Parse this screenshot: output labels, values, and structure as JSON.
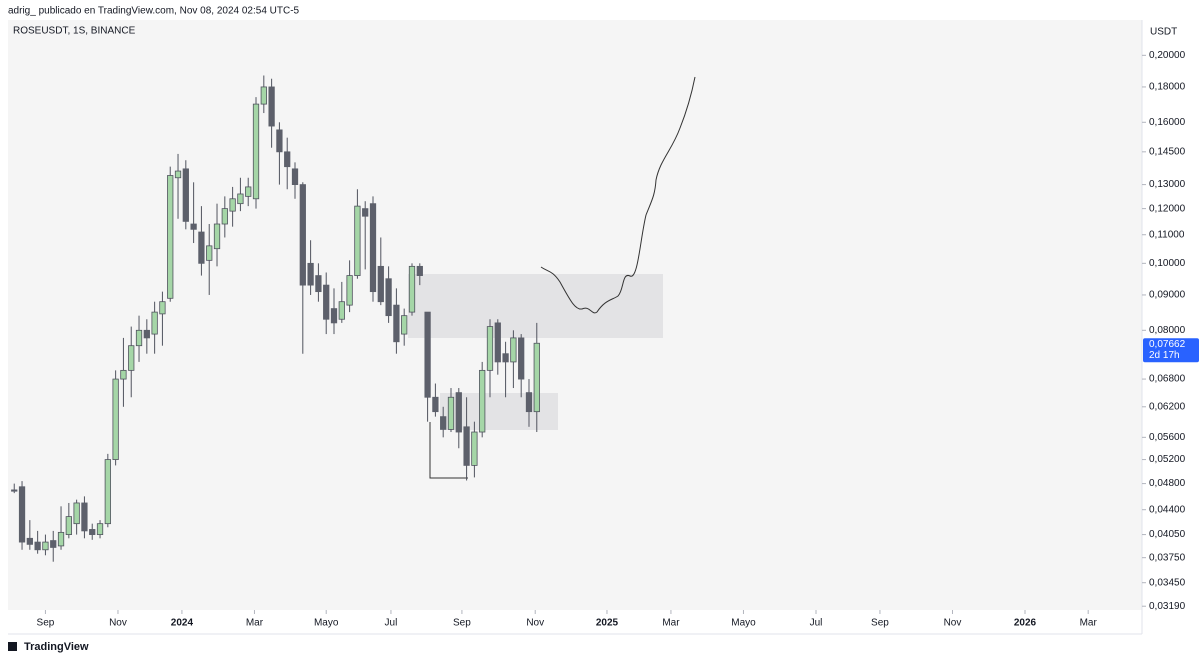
{
  "header": "adrig_  publicado en TradingView.com, Nov 08, 2024 02:54 UTC-5",
  "footer": "TradingView",
  "chart_data": {
    "type": "candlestick",
    "symbol": "ROSEUSDT, 1S, BINANCE",
    "currency": "USDT",
    "log_scale": true,
    "grid": false,
    "up_color": "#a5d6a7",
    "down_color": "#5d606b",
    "last_price": {
      "value": 0.07662,
      "label": "0,07662"
    },
    "countdown": "2d 17h",
    "open": [
      0.047,
      0.0475,
      0.04,
      0.0395,
      0.0385,
      0.0397,
      0.039,
      0.0405,
      0.042,
      0.045,
      0.0412,
      0.0405,
      0.042,
      0.052,
      0.068,
      0.07,
      0.076,
      0.08,
      0.079,
      0.0845,
      0.089,
      0.133,
      0.137,
      0.114,
      0.111,
      0.101,
      0.105,
      0.114,
      0.119,
      0.122,
      0.125,
      0.124,
      0.17,
      0.18,
      0.156,
      0.145,
      0.137,
      0.13,
      0.1,
      0.096,
      0.093,
      0.086,
      0.083,
      0.087,
      0.096,
      0.12,
      0.122,
      0.099,
      0.095,
      0.087,
      0.079,
      0.085,
      0.099,
      0.085,
      0.064,
      0.06,
      0.0575,
      0.065,
      0.058,
      0.051,
      0.057,
      0.07,
      0.082,
      0.074,
      0.072,
      0.078,
      0.065,
      0.061
    ],
    "high": [
      0.048,
      0.0484,
      0.0425,
      0.041,
      0.0405,
      0.041,
      0.0445,
      0.045,
      0.0455,
      0.046,
      0.042,
      0.0425,
      0.053,
      0.07,
      0.078,
      0.081,
      0.084,
      0.083,
      0.088,
      0.091,
      0.138,
      0.144,
      0.141,
      0.131,
      0.121,
      0.114,
      0.122,
      0.125,
      0.129,
      0.133,
      0.133,
      0.174,
      0.187,
      0.185,
      0.16,
      0.152,
      0.14,
      0.131,
      0.108,
      0.1,
      0.097,
      0.092,
      0.094,
      0.101,
      0.128,
      0.123,
      0.125,
      0.109,
      0.099,
      0.092,
      0.086,
      0.1,
      0.1,
      0.085,
      0.067,
      0.062,
      0.066,
      0.066,
      0.064,
      0.059,
      0.072,
      0.083,
      0.083,
      0.077,
      0.08,
      0.079,
      0.068,
      0.082
    ],
    "low": [
      0.0465,
      0.0385,
      0.0385,
      0.038,
      0.0378,
      0.037,
      0.0385,
      0.04,
      0.0405,
      0.04,
      0.0398,
      0.04,
      0.0415,
      0.051,
      0.062,
      0.064,
      0.072,
      0.074,
      0.074,
      0.076,
      0.088,
      0.116,
      0.112,
      0.107,
      0.096,
      0.09,
      0.099,
      0.109,
      0.113,
      0.119,
      0.121,
      0.12,
      0.165,
      0.147,
      0.13,
      0.128,
      0.124,
      0.074,
      0.09,
      0.088,
      0.079,
      0.079,
      0.082,
      0.085,
      0.095,
      0.098,
      0.088,
      0.087,
      0.082,
      0.074,
      0.076,
      0.084,
      0.093,
      0.059,
      0.06,
      0.056,
      0.057,
      0.054,
      0.0485,
      0.049,
      0.056,
      0.064,
      0.069,
      0.064,
      0.066,
      0.064,
      0.058,
      0.057
    ],
    "close": [
      0.0468,
      0.0395,
      0.0392,
      0.0385,
      0.0395,
      0.0388,
      0.0408,
      0.043,
      0.045,
      0.041,
      0.0405,
      0.042,
      0.052,
      0.068,
      0.07,
      0.076,
      0.08,
      0.078,
      0.085,
      0.088,
      0.134,
      0.136,
      0.115,
      0.112,
      0.1,
      0.106,
      0.114,
      0.12,
      0.124,
      0.126,
      0.129,
      0.17,
      0.18,
      0.158,
      0.145,
      0.138,
      0.13,
      0.093,
      0.093,
      0.091,
      0.083,
      0.082,
      0.088,
      0.096,
      0.121,
      0.117,
      0.091,
      0.088,
      0.084,
      0.077,
      0.084,
      0.099,
      0.096,
      0.064,
      0.061,
      0.0575,
      0.064,
      0.057,
      0.051,
      0.057,
      0.07,
      0.081,
      0.072,
      0.072,
      0.078,
      0.068,
      0.061,
      0.07662
    ],
    "xlim": [
      -0.8,
      144.6
    ],
    "xticks": [
      {
        "value": 4.0,
        "label": "Sep"
      },
      {
        "value": 13.3,
        "label": "Nov"
      },
      {
        "value": 21.5,
        "label": "2024"
      },
      {
        "value": 30.8,
        "label": "Mar"
      },
      {
        "value": 40.0,
        "label": "Mayo"
      },
      {
        "value": 48.3,
        "label": "Jul"
      },
      {
        "value": 57.4,
        "label": "Sep"
      },
      {
        "value": 66.8,
        "label": "Nov"
      },
      {
        "value": 76.0,
        "label": "2025"
      },
      {
        "value": 84.2,
        "label": "Mar"
      },
      {
        "value": 93.5,
        "label": "Mayo"
      },
      {
        "value": 102.8,
        "label": "Jul"
      },
      {
        "value": 111.0,
        "label": "Sep"
      },
      {
        "value": 120.3,
        "label": "Nov"
      },
      {
        "value": 129.6,
        "label": "2026"
      },
      {
        "value": 137.7,
        "label": "Mar"
      }
    ],
    "ylim": [
      0.0315,
      0.207
    ],
    "yticks": [
      {
        "value": 0.2,
        "label": "0,20000"
      },
      {
        "value": 0.18,
        "label": "0,18000"
      },
      {
        "value": 0.16,
        "label": "0,16000"
      },
      {
        "value": 0.145,
        "label": "0,14500"
      },
      {
        "value": 0.13,
        "label": "0,13000"
      },
      {
        "value": 0.12,
        "label": "0,12000"
      },
      {
        "value": 0.11,
        "label": "0,11000"
      },
      {
        "value": 0.1,
        "label": "0,10000"
      },
      {
        "value": 0.09,
        "label": "0,09000"
      },
      {
        "value": 0.08,
        "label": "0,08000"
      },
      {
        "value": 0.068,
        "label": "0,06800"
      },
      {
        "value": 0.062,
        "label": "0,06200"
      },
      {
        "value": 0.056,
        "label": "0,05600"
      },
      {
        "value": 0.052,
        "label": "0,05200"
      },
      {
        "value": 0.048,
        "label": "0,04800"
      },
      {
        "value": 0.044,
        "label": "0,04400"
      },
      {
        "value": 0.0405,
        "label": "0,04050"
      },
      {
        "value": 0.0375,
        "label": "0,03750"
      },
      {
        "value": 0.0345,
        "label": "0,03450"
      },
      {
        "value": 0.0319,
        "label": "0,03190"
      }
    ]
  }
}
